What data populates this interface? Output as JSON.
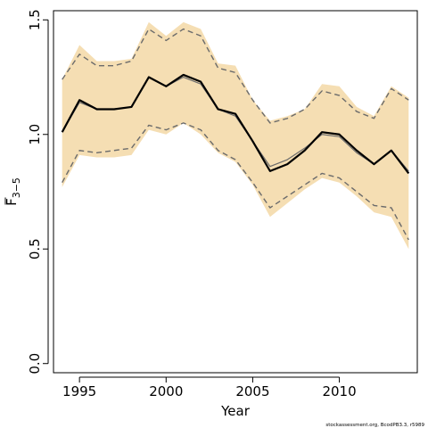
{
  "chart_data": {
    "type": "line",
    "title": "",
    "xlabel": "Year",
    "ylabel": {
      "main": "F",
      "subscript": "3−5"
    },
    "xlim": [
      1993.5,
      2014.5
    ],
    "ylim": [
      -0.04,
      1.54
    ],
    "x_ticks": [
      1995,
      2000,
      2005,
      2010
    ],
    "x_tick_labels": [
      "1995",
      "2000",
      "2005",
      "2010"
    ],
    "y_ticks": [
      0.0,
      0.5,
      1.0,
      1.5
    ],
    "y_tick_labels": [
      "0.0",
      "0.5",
      "1.0",
      "1.5"
    ],
    "grid": false,
    "band_color": "#f5deb3",
    "x": [
      1994,
      1995,
      1996,
      1997,
      1998,
      1999,
      2000,
      2001,
      2002,
      2003,
      2004,
      2005,
      2006,
      2007,
      2008,
      2009,
      2010,
      2011,
      2012,
      2013,
      2014
    ],
    "band": {
      "upper": [
        1.24,
        1.39,
        1.32,
        1.32,
        1.33,
        1.49,
        1.43,
        1.49,
        1.46,
        1.31,
        1.3,
        1.15,
        1.06,
        1.08,
        1.11,
        1.22,
        1.21,
        1.12,
        1.08,
        1.21,
        1.16
      ],
      "lower": [
        0.77,
        0.91,
        0.9,
        0.9,
        0.91,
        1.02,
        1.0,
        1.05,
        1.0,
        0.92,
        0.88,
        0.78,
        0.64,
        0.7,
        0.76,
        0.81,
        0.79,
        0.73,
        0.66,
        0.64,
        0.5
      ]
    },
    "series": [
      {
        "values": [
          1.01,
          1.15,
          1.11,
          1.11,
          1.12,
          1.25,
          1.21,
          1.26,
          1.23,
          1.11,
          1.09,
          0.97,
          0.84,
          0.87,
          0.93,
          1.01,
          1.0,
          0.93,
          0.87,
          0.93,
          0.83
        ],
        "color": "#000000",
        "style": "solid-thick"
      },
      {
        "values": [
          1.01,
          1.14,
          1.11,
          1.11,
          1.12,
          1.25,
          1.21,
          1.25,
          1.22,
          1.11,
          1.08,
          0.97,
          0.86,
          0.89,
          0.94,
          1.0,
          0.99,
          0.92,
          0.87,
          0.93,
          0.84
        ],
        "color": "#6b6b6b",
        "style": "solid-thin"
      },
      {
        "values": [
          1.24,
          1.35,
          1.3,
          1.3,
          1.32,
          1.46,
          1.41,
          1.46,
          1.43,
          1.29,
          1.27,
          1.15,
          1.05,
          1.07,
          1.11,
          1.19,
          1.17,
          1.1,
          1.07,
          1.2,
          1.15
        ],
        "color": "#6b6b6b",
        "style": "dashed"
      },
      {
        "values": [
          0.79,
          0.93,
          0.92,
          0.93,
          0.94,
          1.04,
          1.02,
          1.05,
          1.02,
          0.93,
          0.89,
          0.79,
          0.68,
          0.73,
          0.78,
          0.83,
          0.81,
          0.75,
          0.69,
          0.68,
          0.54
        ],
        "color": "#6b6b6b",
        "style": "dashed"
      }
    ],
    "footer": "stockassessment.org, BcodPB3.3, r5989"
  }
}
